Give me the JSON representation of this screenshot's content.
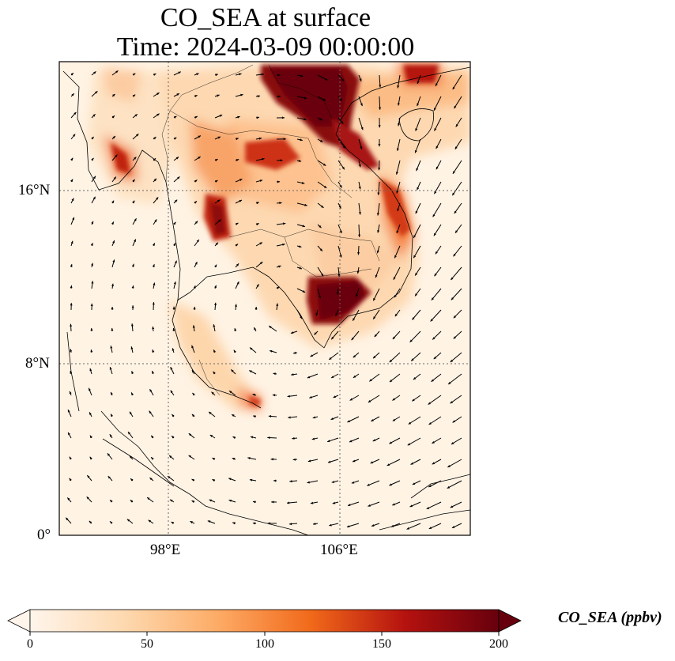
{
  "title": {
    "line1": "CO_SEA at surface",
    "line2": "Time: 2024-03-09 00:00:00"
  },
  "axes": {
    "lat_ticks": [
      "16°N",
      "8°N",
      "0°"
    ],
    "lon_ticks": [
      "98°E",
      "106°E"
    ]
  },
  "colorbar": {
    "label": "CO_SEA (ppbv)",
    "ticks": [
      "0",
      "50",
      "100",
      "150",
      "200"
    ],
    "min": 0,
    "max": 200,
    "colors": [
      "#fff5eb",
      "#fdd1a3",
      "#fd9243",
      "#df4f0d",
      "#a50f15",
      "#67000d"
    ]
  }
}
